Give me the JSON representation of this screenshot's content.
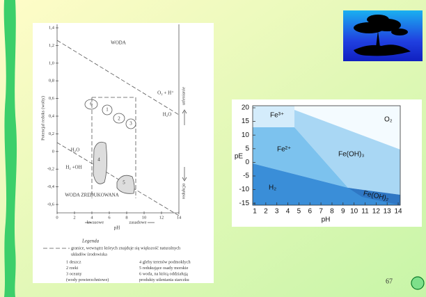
{
  "left_figure": {
    "y_axis_label": "Potencjał redoks (wolty)",
    "y_ticks": [
      "1,4",
      "1,2",
      "1,0",
      "0,8",
      "0,6",
      "0,4",
      "0,2",
      "0",
      "-0,2",
      "-0,4",
      "-0,6"
    ],
    "x_ticks": [
      "0",
      "2",
      "4",
      "6",
      "8",
      "10",
      "12",
      "14"
    ],
    "x_label": "pH",
    "acid_label": "kwasowe",
    "basic_label": "zasadowe",
    "water": "WODA",
    "oxygen": "O₂ + H⁺",
    "water_upper": "H₂O",
    "oxidation": "utlenianie",
    "water_lower": "H₂O",
    "hydrogen": "H₂ +OH",
    "reduced_water": "WODA ZREDUKOWANA",
    "reduction": "redukcja",
    "zones": [
      "6",
      "1",
      "2",
      "3",
      "4",
      "5"
    ],
    "legend": {
      "title": "Legenda",
      "boundary": [
        "granice, wewnątrz których znajduje się większość naturalnych",
        "układów środowiska"
      ],
      "items_left": [
        "1 deszcz",
        "2 rzeki",
        "3 oceany",
        "(wody powierzchniowe)"
      ],
      "items_right": [
        "4 gleby terenów podmokłych",
        "5 redukujące osady morskie",
        "6 woda, na którą oddziałują",
        "produkty utleniania siarczku"
      ]
    }
  },
  "right_figure": {
    "y_label": "pE",
    "x_label": "pH",
    "y_ticks": [
      20,
      15,
      10,
      5,
      0,
      -5,
      -10,
      -15
    ],
    "x_ticks": [
      1,
      2,
      3,
      4,
      5,
      6,
      7,
      8,
      9,
      10,
      11,
      12,
      13,
      14
    ],
    "regions": [
      "Fe³⁺",
      "O₂",
      "Fe²⁺",
      "Fe(OH)₃",
      "H₂",
      "Fe(OH)₂"
    ]
  },
  "page_number": "67"
}
